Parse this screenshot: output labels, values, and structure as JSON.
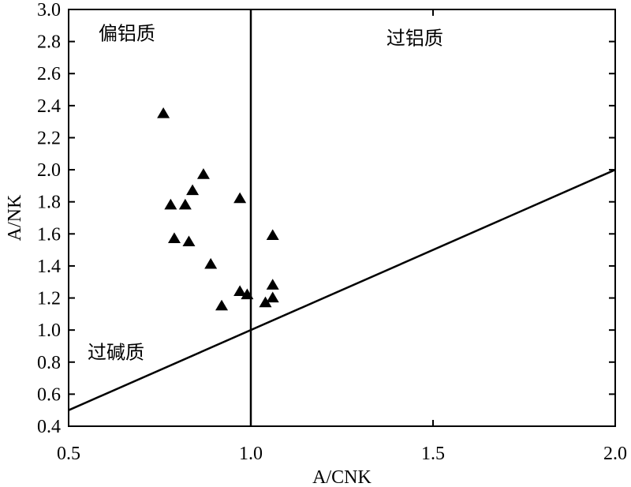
{
  "chart_data": {
    "type": "scatter",
    "xlabel": "A/CNK",
    "ylabel": "A/NK",
    "xlim": [
      0.5,
      2.0
    ],
    "ylim": [
      0.4,
      3.0
    ],
    "x_ticks": [
      "0.5",
      "1.0",
      "1.5",
      "2.0"
    ],
    "y_ticks": [
      "0.4",
      "0.6",
      "0.8",
      "1.0",
      "1.2",
      "1.4",
      "1.6",
      "1.8",
      "2.0",
      "2.2",
      "2.4",
      "2.6",
      "2.8",
      "3.0"
    ],
    "grid": false,
    "marker": "filled-triangle",
    "marker_color": "#000000",
    "points": [
      {
        "x": 0.76,
        "y": 2.35
      },
      {
        "x": 0.87,
        "y": 1.97
      },
      {
        "x": 0.84,
        "y": 1.87
      },
      {
        "x": 0.97,
        "y": 1.82
      },
      {
        "x": 0.78,
        "y": 1.78
      },
      {
        "x": 0.82,
        "y": 1.78
      },
      {
        "x": 0.79,
        "y": 1.57
      },
      {
        "x": 0.83,
        "y": 1.55
      },
      {
        "x": 1.06,
        "y": 1.59
      },
      {
        "x": 0.89,
        "y": 1.41
      },
      {
        "x": 1.06,
        "y": 1.28
      },
      {
        "x": 0.97,
        "y": 1.24
      },
      {
        "x": 0.99,
        "y": 1.22
      },
      {
        "x": 1.06,
        "y": 1.2
      },
      {
        "x": 1.04,
        "y": 1.17
      },
      {
        "x": 0.92,
        "y": 1.15
      }
    ],
    "reference_lines": [
      {
        "type": "vertical",
        "x": 1.0
      },
      {
        "type": "diagonal",
        "from": [
          0.5,
          0.5
        ],
        "to": [
          2.0,
          2.0
        ]
      }
    ],
    "annotations": [
      {
        "text": "偏铝质",
        "x": 0.66,
        "y": 2.85
      },
      {
        "text": "过铝质",
        "x": 1.45,
        "y": 2.82
      },
      {
        "text": "过碱质",
        "x": 0.63,
        "y": 0.86
      }
    ]
  }
}
